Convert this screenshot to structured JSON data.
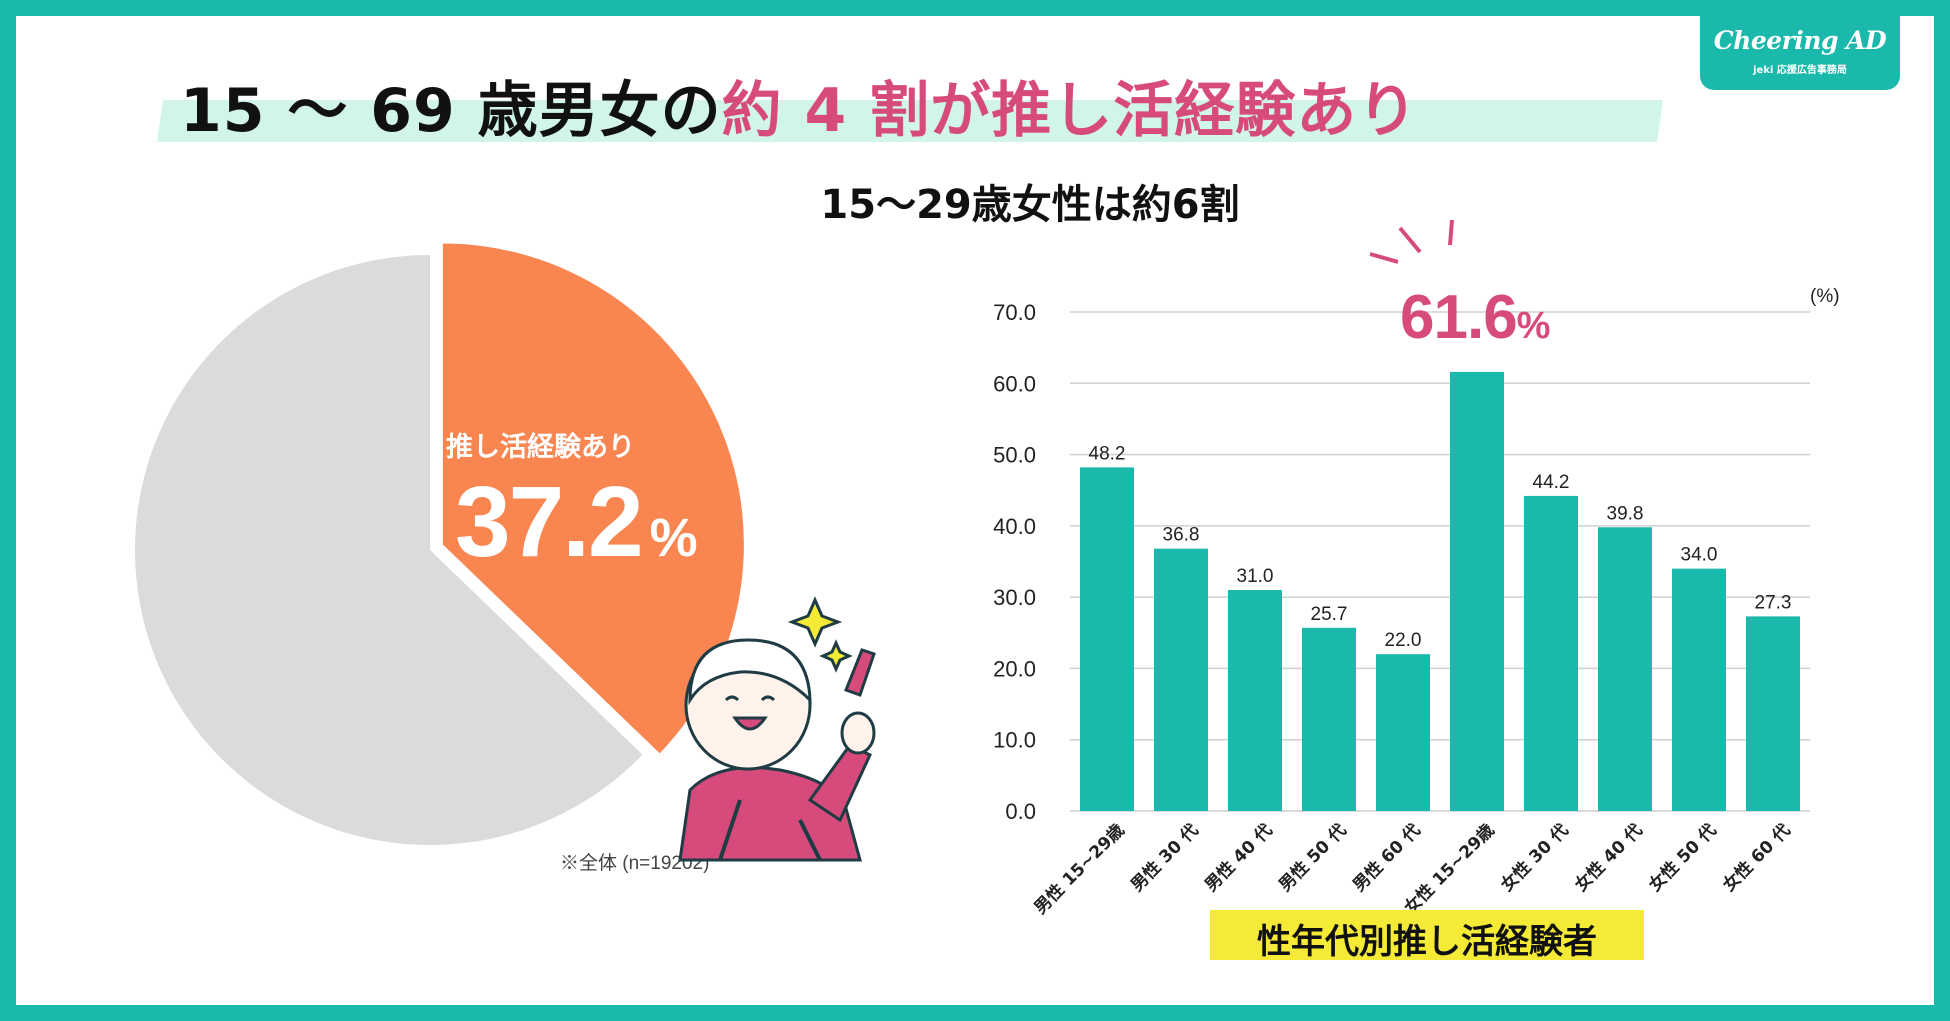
{
  "logo": {
    "name": "Cheering AD",
    "sub": "jeki 応援広告事務局"
  },
  "title": {
    "part1": "15 ～ 69 歳男女の",
    "highlight": "約 4 割が推し活経験あり"
  },
  "subtitle": "15～29歳女性は約6割",
  "pie": {
    "label": "推し活経験あり",
    "value": "37.2",
    "unit": "%",
    "note": "※全体 (n=19202)",
    "colors": {
      "highlight": "#f98550",
      "rest": "#dbdbdb"
    }
  },
  "callout": {
    "value": "61.6",
    "unit": "%"
  },
  "chart_data": {
    "type": "bar",
    "categories": [
      "男性 15~29歳",
      "男性 30 代",
      "男性 40 代",
      "男性 50 代",
      "男性 60 代",
      "女性 15~29歳",
      "女性 30 代",
      "女性 40 代",
      "女性 50 代",
      "女性 60 代"
    ],
    "values": [
      48.2,
      36.8,
      31.0,
      25.7,
      22.0,
      61.6,
      44.2,
      39.8,
      34.0,
      27.3
    ],
    "value_labels": [
      "48.2",
      "36.8",
      "31.0",
      "25.7",
      "22.0",
      "",
      "44.2",
      "39.8",
      "34.0",
      "27.3"
    ],
    "ylim": [
      0,
      70
    ],
    "yticks": [
      "70.0",
      "60.0",
      "50.0",
      "40.0",
      "30.0",
      "20.0",
      "10.0",
      "0.0"
    ],
    "ytick_values": [
      70,
      60,
      50,
      40,
      30,
      20,
      10,
      0
    ],
    "unit_label": "(%)",
    "xlabel": "性年代別推し活経験者",
    "grid": true,
    "bar_color": "#1ab9ac"
  }
}
